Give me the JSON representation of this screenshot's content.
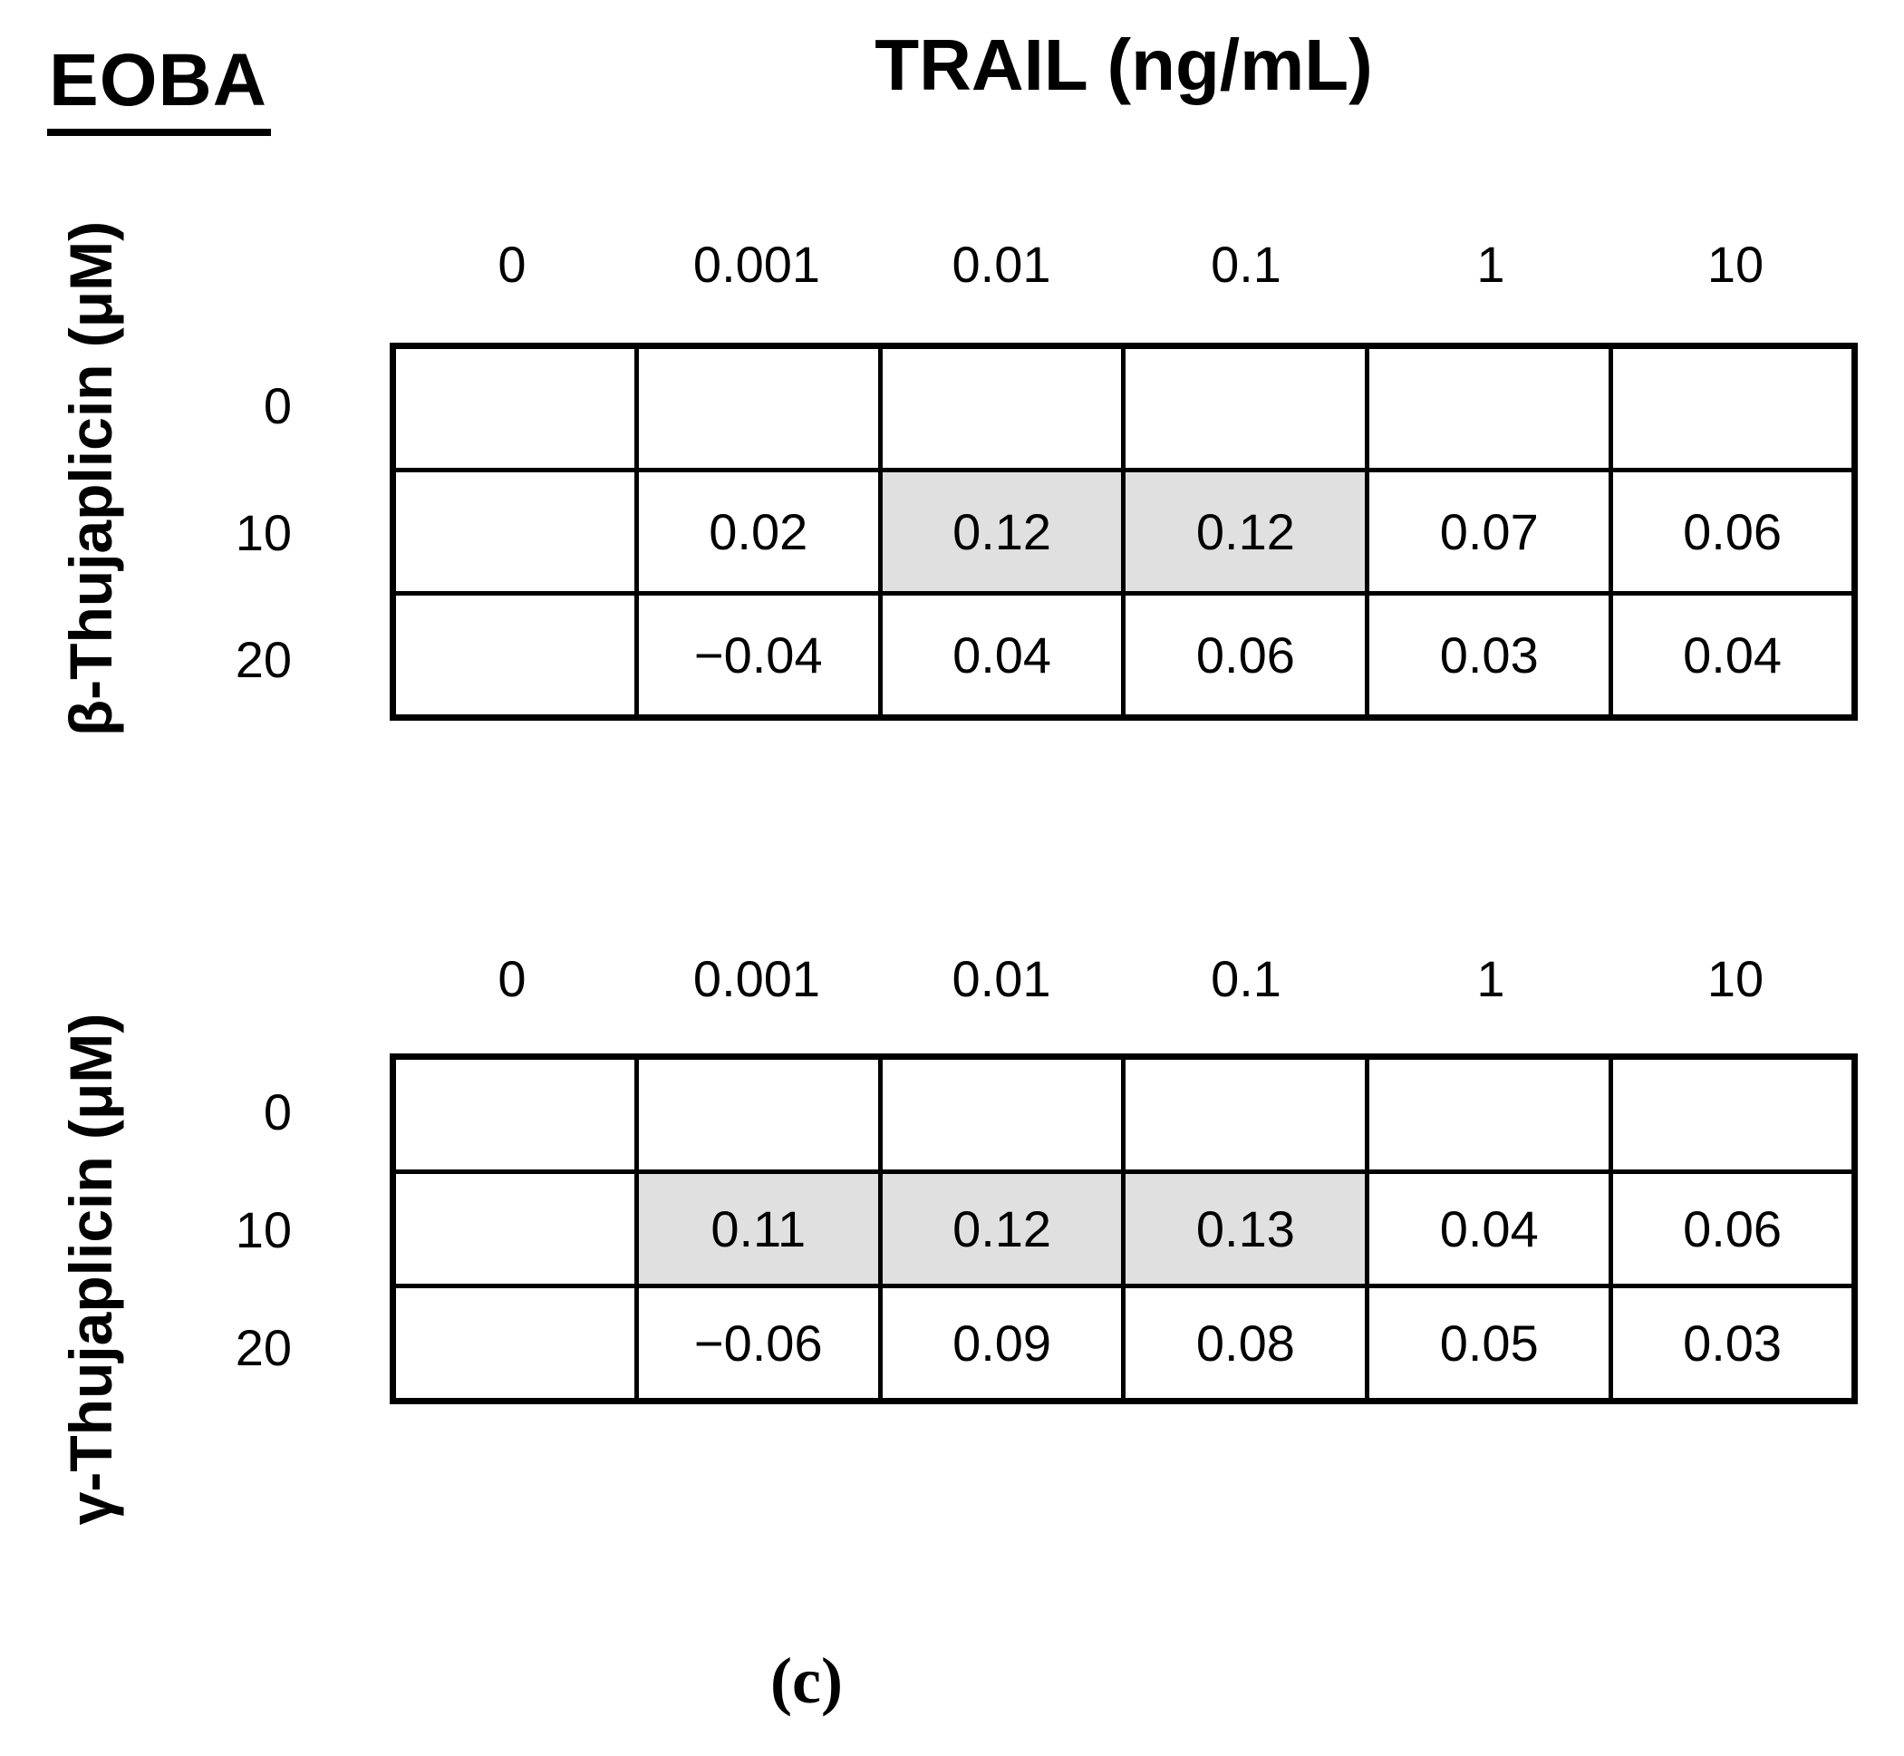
{
  "figure": {
    "group_label": "EOBA",
    "column_axis_title": "TRAIL (ng/mL)",
    "caption": "(c)"
  },
  "colors": {
    "highlight_fill": "#e0e0e0",
    "border": "#000000",
    "background": "#ffffff"
  },
  "tables": [
    {
      "row_axis_title": "β-Thujaplicin (μM)",
      "col_headers": [
        "0",
        "0.001",
        "0.01",
        "0.1",
        "1",
        "10"
      ],
      "row_labels": [
        "0",
        "10",
        "20"
      ],
      "rows": [
        {
          "cells": [
            {
              "value": "",
              "highlight": false
            },
            {
              "value": "",
              "highlight": false
            },
            {
              "value": "",
              "highlight": false
            },
            {
              "value": "",
              "highlight": false
            },
            {
              "value": "",
              "highlight": false
            },
            {
              "value": "",
              "highlight": false
            }
          ]
        },
        {
          "cells": [
            {
              "value": "",
              "highlight": false
            },
            {
              "value": "0.02",
              "highlight": false
            },
            {
              "value": "0.12",
              "highlight": true
            },
            {
              "value": "0.12",
              "highlight": true
            },
            {
              "value": "0.07",
              "highlight": false
            },
            {
              "value": "0.06",
              "highlight": false
            }
          ]
        },
        {
          "cells": [
            {
              "value": "",
              "highlight": false
            },
            {
              "value": "−0.04",
              "highlight": false
            },
            {
              "value": "0.04",
              "highlight": false
            },
            {
              "value": "0.06",
              "highlight": false
            },
            {
              "value": "0.03",
              "highlight": false
            },
            {
              "value": "0.04",
              "highlight": false
            }
          ]
        }
      ]
    },
    {
      "row_axis_title": "γ-Thujaplicin (μM)",
      "col_headers": [
        "0",
        "0.001",
        "0.01",
        "0.1",
        "1",
        "10"
      ],
      "row_labels": [
        "0",
        "10",
        "20"
      ],
      "rows": [
        {
          "cells": [
            {
              "value": "",
              "highlight": false
            },
            {
              "value": "",
              "highlight": false
            },
            {
              "value": "",
              "highlight": false
            },
            {
              "value": "",
              "highlight": false
            },
            {
              "value": "",
              "highlight": false
            },
            {
              "value": "",
              "highlight": false
            }
          ]
        },
        {
          "cells": [
            {
              "value": "",
              "highlight": false
            },
            {
              "value": "0.11",
              "highlight": true
            },
            {
              "value": "0.12",
              "highlight": true
            },
            {
              "value": "0.13",
              "highlight": true
            },
            {
              "value": "0.04",
              "highlight": false
            },
            {
              "value": "0.06",
              "highlight": false
            }
          ]
        },
        {
          "cells": [
            {
              "value": "",
              "highlight": false
            },
            {
              "value": "−0.06",
              "highlight": false
            },
            {
              "value": "0.09",
              "highlight": false
            },
            {
              "value": "0.08",
              "highlight": false
            },
            {
              "value": "0.05",
              "highlight": false
            },
            {
              "value": "0.03",
              "highlight": false
            }
          ]
        }
      ]
    }
  ],
  "chart_data": [
    {
      "type": "heatmap",
      "title": "EOBA",
      "xlabel": "TRAIL (ng/mL)",
      "ylabel": "β-Thujaplicin (μM)",
      "x": [
        "0",
        "0.001",
        "0.01",
        "0.1",
        "1",
        "10"
      ],
      "y": [
        "0",
        "10",
        "20"
      ],
      "values": [
        [
          null,
          null,
          null,
          null,
          null,
          null
        ],
        [
          null,
          0.02,
          0.12,
          0.12,
          0.07,
          0.06
        ],
        [
          null,
          -0.04,
          0.04,
          0.06,
          0.03,
          0.04
        ]
      ],
      "highlighted_cells_row_col": [
        [
          1,
          2
        ],
        [
          1,
          3
        ]
      ],
      "highlight_meaning_color": "#e0e0e0",
      "grid": true,
      "legend": false
    },
    {
      "type": "heatmap",
      "title": "EOBA",
      "xlabel": "TRAIL (ng/mL)",
      "ylabel": "γ-Thujaplicin (μM)",
      "x": [
        "0",
        "0.001",
        "0.01",
        "0.1",
        "1",
        "10"
      ],
      "y": [
        "0",
        "10",
        "20"
      ],
      "values": [
        [
          null,
          null,
          null,
          null,
          null,
          null
        ],
        [
          null,
          0.11,
          0.12,
          0.13,
          0.04,
          0.06
        ],
        [
          null,
          -0.06,
          0.09,
          0.08,
          0.05,
          0.03
        ]
      ],
      "highlighted_cells_row_col": [
        [
          1,
          1
        ],
        [
          1,
          2
        ],
        [
          1,
          3
        ]
      ],
      "highlight_meaning_color": "#e0e0e0",
      "grid": true,
      "legend": false
    }
  ]
}
